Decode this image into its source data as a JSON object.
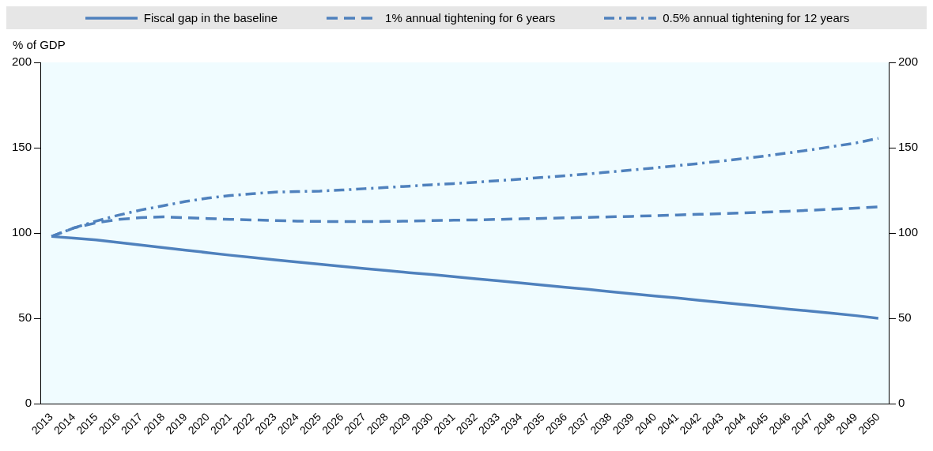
{
  "chart_data": {
    "type": "line",
    "ylabel": "% of GDP",
    "categories": [
      "2013",
      "2014",
      "2015",
      "2016",
      "2017",
      "2018",
      "2019",
      "2020",
      "2021",
      "2022",
      "2023",
      "2024",
      "2025",
      "2026",
      "2027",
      "2028",
      "2029",
      "2030",
      "2031",
      "2032",
      "2033",
      "2034",
      "2035",
      "2036",
      "2037",
      "2038",
      "2039",
      "2040",
      "2041",
      "2042",
      "2043",
      "2044",
      "2045",
      "2046",
      "2047",
      "2048",
      "2049",
      "2050"
    ],
    "series": [
      {
        "name": "Fiscal gap in the baseline",
        "color": "#4f81bd",
        "line_style": "solid",
        "values": [
          98,
          97,
          96,
          94.5,
          93,
          91.5,
          90,
          88.5,
          87,
          85.7,
          84.3,
          83,
          81.7,
          80.5,
          79.2,
          78,
          76.8,
          75.7,
          74.5,
          73.2,
          72,
          70.7,
          69.5,
          68.2,
          67,
          65.7,
          64.4,
          63.1,
          61.9,
          60.6,
          59.3,
          58,
          56.7,
          55.4,
          54.2,
          52.9,
          51.6,
          50
        ]
      },
      {
        "name": "1% annual tightening for 6 years",
        "color": "#4f81bd",
        "line_style": "dashed",
        "values": [
          98,
          103,
          106,
          108,
          109,
          109.5,
          109,
          108.5,
          108,
          107.7,
          107.3,
          107,
          106.8,
          106.7,
          106.7,
          106.8,
          107,
          107.3,
          107.5,
          107.7,
          108,
          108.3,
          108.6,
          108.9,
          109.2,
          109.5,
          109.8,
          110.2,
          110.6,
          111,
          111.4,
          111.8,
          112.3,
          112.8,
          113.4,
          114,
          114.6,
          115.3
        ]
      },
      {
        "name": "0.5% annual tightening for 12 years",
        "color": "#4f81bd",
        "line_style": "dashdot",
        "values": [
          98,
          103,
          107,
          110.5,
          113.5,
          116,
          118.5,
          120.5,
          122,
          123,
          124,
          124.3,
          124.6,
          125.2,
          126,
          126.7,
          127.5,
          128.3,
          129,
          129.8,
          130.7,
          131.6,
          132.6,
          133.6,
          134.7,
          135.8,
          137,
          138.2,
          139.5,
          140.8,
          142.2,
          143.7,
          145.3,
          147,
          148.8,
          150.8,
          152.8,
          155.5
        ]
      }
    ],
    "ylim": [
      0,
      200
    ],
    "yticks": [
      0,
      50,
      100,
      150,
      200
    ],
    "y2lim": [
      0,
      200
    ],
    "y2ticks": [
      0,
      50,
      100,
      150,
      200
    ],
    "grid": false,
    "legend": "top",
    "marker": "none"
  }
}
